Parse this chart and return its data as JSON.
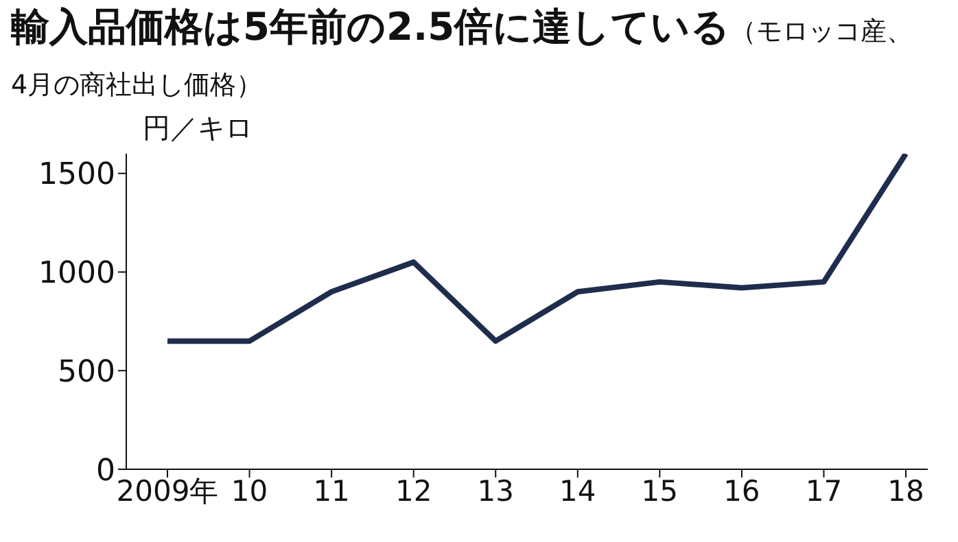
{
  "chart_data": {
    "type": "line",
    "title": "輸入品価格は5年前の2.5倍に達している",
    "subtitle": "（モロッコ産、4月の商社出し価格）",
    "ylabel": "円／キロ",
    "categories": [
      "2009年",
      "10",
      "11",
      "12",
      "13",
      "14",
      "15",
      "16",
      "17",
      "18"
    ],
    "series": [
      {
        "color": "#1f2d4d",
        "values": [
          650,
          650,
          900,
          1050,
          650,
          900,
          950,
          920,
          950,
          1600
        ]
      }
    ],
    "ylim": [
      0,
      1600
    ],
    "yticks": [
      0,
      500,
      1000,
      1500
    ],
    "grid": false,
    "legend": false,
    "marker": "none",
    "line_style": "solid"
  }
}
